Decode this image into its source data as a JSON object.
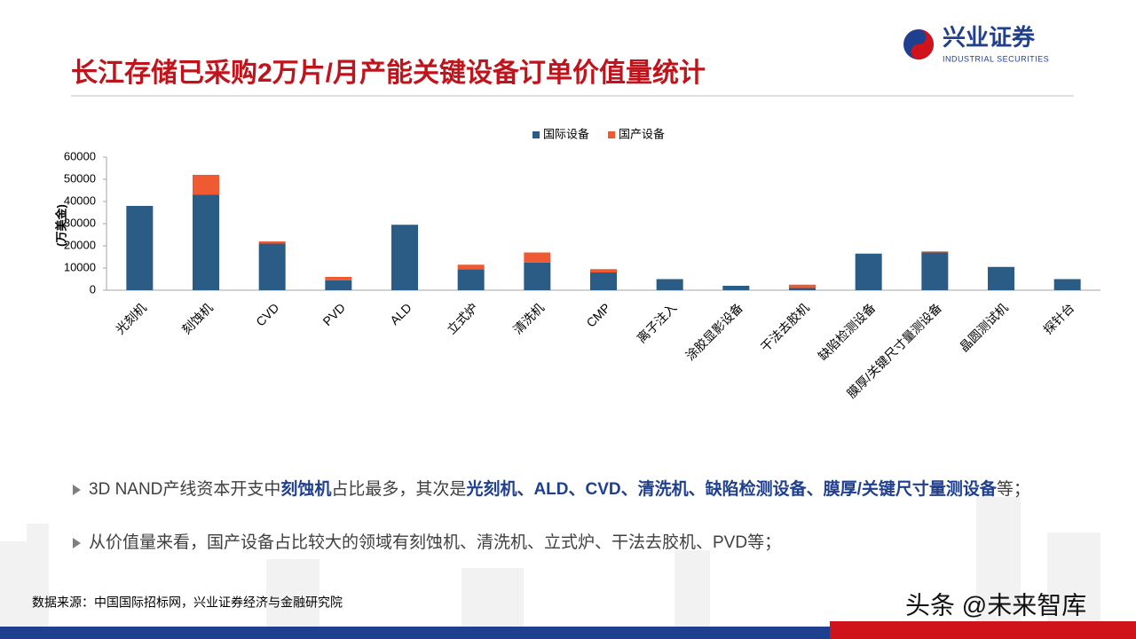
{
  "header": {
    "title": "长江存储已采购2万片/月产能关键设备订单价值量统计",
    "logo_name": "兴业证券",
    "logo_subtitle": "INDUSTRIAL SECURITIES"
  },
  "chart_data": {
    "type": "bar",
    "stacked": true,
    "ylabel": "(万美金)",
    "legend": "top",
    "grid": false,
    "categories": [
      "光刻机",
      "刻蚀机",
      "CVD",
      "PVD",
      "ALD",
      "立式炉",
      "清洗机",
      "CMP",
      "离子注入",
      "涂胶显影设备",
      "干法去胶机",
      "缺陷检测设备",
      "膜厚/关键尺寸量测设备",
      "晶圆测试机",
      "探针台"
    ],
    "series": [
      {
        "name": "国际设备",
        "color": "#2b5c86",
        "values": [
          38000,
          43000,
          21000,
          4500,
          29500,
          9500,
          12500,
          8000,
          5000,
          2000,
          1000,
          16500,
          17000,
          10500,
          5000
        ]
      },
      {
        "name": "国产设备",
        "color": "#f05a32",
        "values": [
          0,
          9000,
          1000,
          1500,
          0,
          2000,
          4500,
          1500,
          0,
          0,
          1500,
          0,
          500,
          0,
          0
        ]
      }
    ],
    "ylim": [
      0,
      60000
    ],
    "yticks": [
      0,
      10000,
      20000,
      30000,
      40000,
      50000,
      60000
    ]
  },
  "bullets": [
    [
      {
        "text": "3D NAND产线资本开支中",
        "bold": false
      },
      {
        "text": "刻蚀机",
        "bold": true
      },
      {
        "text": "占比最多，其次是",
        "bold": false
      },
      {
        "text": "光刻机、ALD、CVD、清洗机、缺陷检测设备、膜厚/关键尺寸量测设备",
        "bold": true
      },
      {
        "text": "等；",
        "bold": false
      }
    ],
    [
      {
        "text": "从价值量来看，国产设备占比较大的领域有刻蚀机、清洗机、立式炉、干法去胶机、PVD等；",
        "bold": false
      }
    ]
  ],
  "source": "数据来源：中国国际招标网，兴业证券经济与金融研究院",
  "watermark": "头条 @未来智库"
}
